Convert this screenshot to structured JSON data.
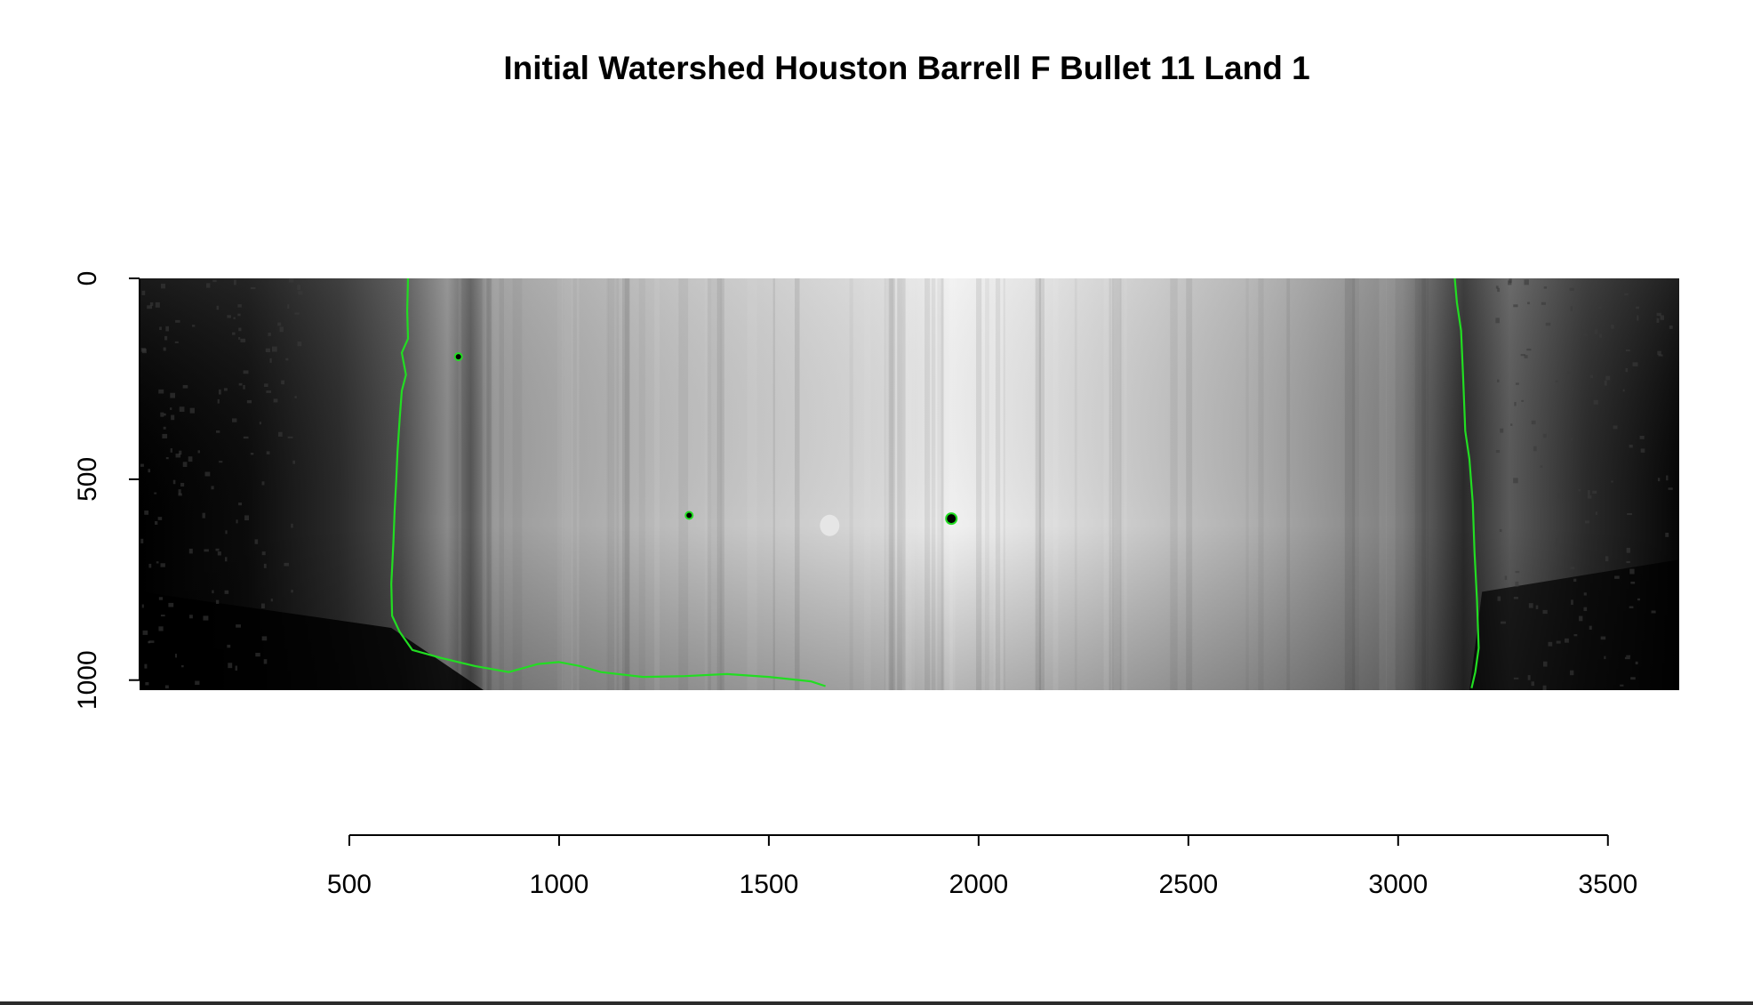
{
  "chart_data": {
    "type": "heatmap",
    "title": "Initial Watershed Houston Barrell F Bullet 11 Land 1",
    "xlabel": "",
    "ylabel": "",
    "x_ticks": [
      500,
      1000,
      1500,
      2000,
      2500,
      3000,
      3500
    ],
    "y_ticks": [
      0,
      500,
      1000
    ],
    "xlim": [
      0,
      3670
    ],
    "ylim": [
      1025,
      0
    ],
    "colormap": "grayscale",
    "boundary_color": "#22dd22",
    "background_color": "#000000",
    "left_boundary": [
      [
        640,
        0
      ],
      [
        638,
        80
      ],
      [
        640,
        150
      ],
      [
        625,
        185
      ],
      [
        635,
        240
      ],
      [
        625,
        280
      ],
      [
        620,
        350
      ],
      [
        615,
        430
      ],
      [
        612,
        500
      ],
      [
        608,
        580
      ],
      [
        605,
        660
      ],
      [
        600,
        760
      ],
      [
        602,
        840
      ],
      [
        620,
        880
      ],
      [
        650,
        925
      ],
      [
        720,
        945
      ],
      [
        800,
        965
      ],
      [
        880,
        980
      ],
      [
        950,
        960
      ],
      [
        1000,
        955
      ],
      [
        1050,
        965
      ],
      [
        1100,
        980
      ],
      [
        1200,
        992
      ],
      [
        1300,
        990
      ],
      [
        1400,
        985
      ],
      [
        1500,
        992
      ],
      [
        1600,
        1003
      ],
      [
        1635,
        1015
      ]
    ],
    "right_boundary": [
      [
        3135,
        0
      ],
      [
        3140,
        60
      ],
      [
        3150,
        130
      ],
      [
        3155,
        250
      ],
      [
        3160,
        380
      ],
      [
        3170,
        450
      ],
      [
        3178,
        560
      ],
      [
        3182,
        680
      ],
      [
        3188,
        800
      ],
      [
        3192,
        920
      ],
      [
        3184,
        980
      ],
      [
        3175,
        1020
      ]
    ],
    "spots": [
      {
        "x": 760,
        "y": 195
      },
      {
        "x": 1310,
        "y": 590
      },
      {
        "x": 1935,
        "y": 598
      }
    ]
  }
}
